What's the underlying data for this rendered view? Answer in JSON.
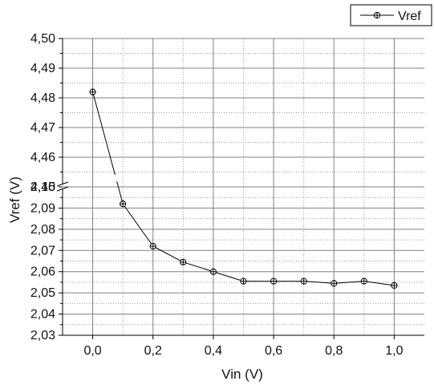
{
  "chart_data": {
    "type": "line",
    "xlabel": "Vin (V)",
    "ylabel": "Vref (V)",
    "xlim": [
      -0.1,
      1.1
    ],
    "x_ticks": [
      "0,0",
      "0,2",
      "0,4",
      "0,6",
      "0,8",
      "1,0"
    ],
    "y_axis_break": true,
    "y_upper_segment": {
      "ylim": [
        4.45,
        4.5
      ],
      "ticks": [
        "4,45",
        "4,46",
        "4,47",
        "4,48",
        "4,49",
        "4,50"
      ]
    },
    "y_lower_segment": {
      "ylim": [
        2.03,
        2.1
      ],
      "ticks": [
        "2,03",
        "2,04",
        "2,05",
        "2,06",
        "2,07",
        "2,08",
        "2,09",
        "2,10"
      ]
    },
    "grid": true,
    "legend_position": "top-right",
    "series": [
      {
        "name": "Vref",
        "color": "#000000",
        "marker": "circle-plus",
        "x": [
          0.0,
          0.1,
          0.2,
          0.3,
          0.4,
          0.5,
          0.6,
          0.7,
          0.8,
          0.9,
          1.0
        ],
        "y": [
          4.482,
          2.092,
          2.072,
          2.0645,
          2.06,
          2.0555,
          2.0555,
          2.0555,
          2.0545,
          2.0555,
          2.0535
        ]
      }
    ]
  }
}
